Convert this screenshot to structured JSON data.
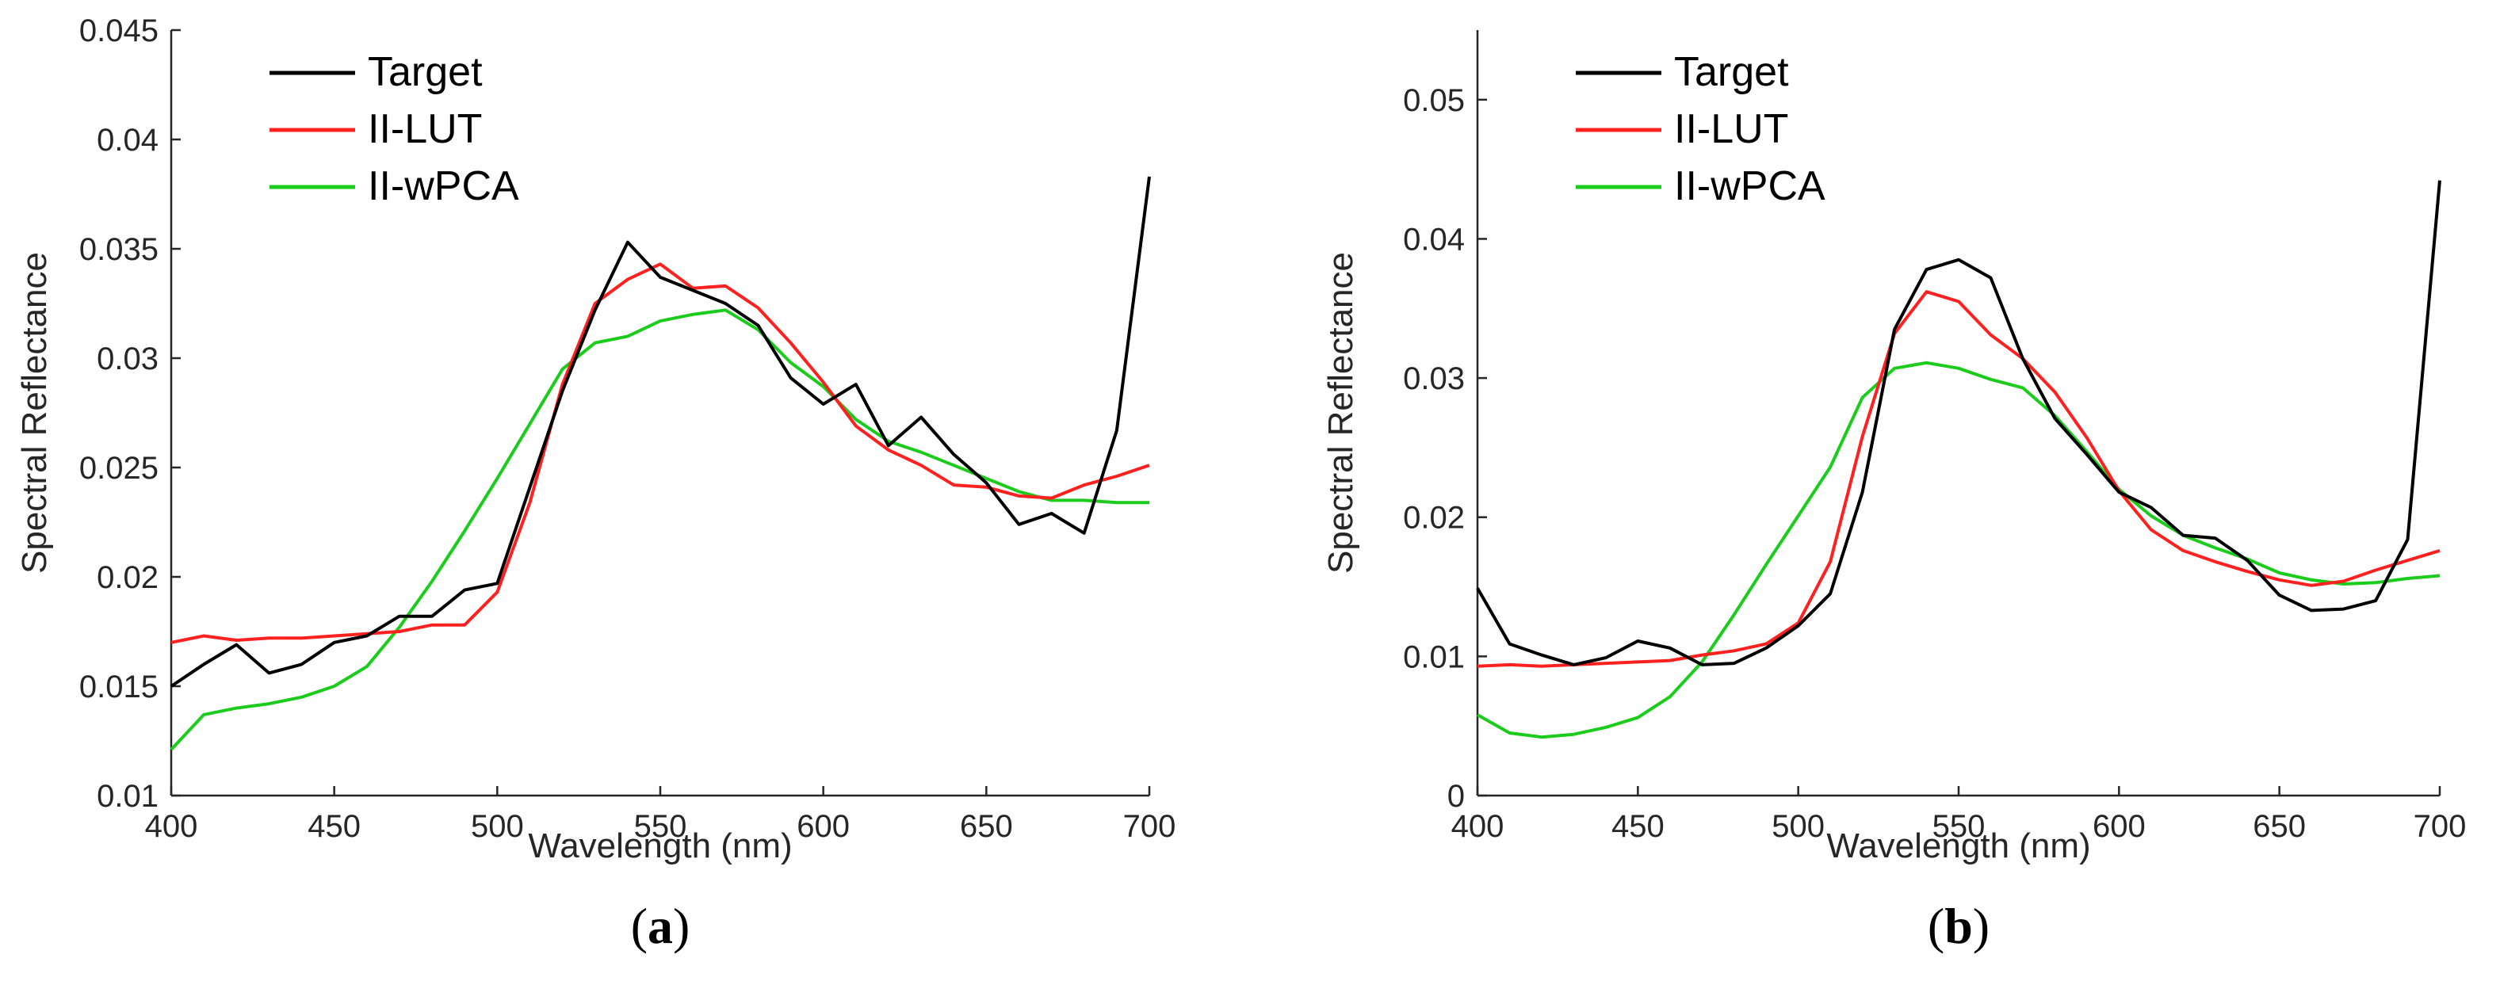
{
  "chart_data": [
    {
      "type": "line",
      "panel_label": "(a)",
      "panel_letter": "a",
      "xlabel": "Wavelength (nm)",
      "ylabel": "Spectral Reflectance",
      "xlim": [
        400,
        700
      ],
      "ylim": [
        0.01,
        0.045
      ],
      "x_ticks": [
        400,
        450,
        500,
        550,
        600,
        650,
        700
      ],
      "x_tick_labels": [
        "400",
        "450",
        "500",
        "550",
        "600",
        "650",
        "700"
      ],
      "y_ticks": [
        0.01,
        0.015,
        0.02,
        0.025,
        0.03,
        0.035,
        0.04,
        0.045
      ],
      "y_tick_labels": [
        "0.01",
        "0.015",
        "0.02",
        "0.025",
        "0.03",
        "0.035",
        "0.04",
        "0.045"
      ],
      "legend_position": "top-left",
      "x": [
        400,
        410,
        420,
        430,
        440,
        450,
        460,
        470,
        480,
        490,
        500,
        510,
        520,
        530,
        540,
        550,
        560,
        570,
        580,
        590,
        600,
        610,
        620,
        630,
        640,
        650,
        660,
        670,
        680,
        690,
        700
      ],
      "series": [
        {
          "name": "Target",
          "color": "#000000",
          "values": [
            0.015,
            0.016,
            0.0169,
            0.0156,
            0.016,
            0.017,
            0.0173,
            0.0182,
            0.0182,
            0.0194,
            0.0197,
            0.0241,
            0.0285,
            0.0322,
            0.0353,
            0.0337,
            0.0331,
            0.0325,
            0.0315,
            0.0291,
            0.0279,
            0.0288,
            0.026,
            0.0273,
            0.0256,
            0.0243,
            0.0224,
            0.0229,
            0.022,
            0.0267,
            0.0383
          ]
        },
        {
          "name": "II-LUT",
          "color": "#ff2020",
          "values": [
            0.017,
            0.0173,
            0.0171,
            0.0172,
            0.0172,
            0.0173,
            0.0174,
            0.0175,
            0.0178,
            0.0178,
            0.0193,
            0.0234,
            0.0288,
            0.0325,
            0.0336,
            0.0343,
            0.0332,
            0.0333,
            0.0323,
            0.0307,
            0.0289,
            0.0269,
            0.0258,
            0.0251,
            0.0242,
            0.0241,
            0.0237,
            0.0236,
            0.0242,
            0.0246,
            0.0251
          ]
        },
        {
          "name": "II-wPCA",
          "color": "#1ccc1c",
          "values": [
            0.0121,
            0.0137,
            0.014,
            0.0142,
            0.0145,
            0.015,
            0.0159,
            0.0177,
            0.0198,
            0.0221,
            0.0245,
            0.027,
            0.0295,
            0.0307,
            0.031,
            0.0317,
            0.032,
            0.0322,
            0.0313,
            0.0298,
            0.0287,
            0.0272,
            0.0262,
            0.0257,
            0.0251,
            0.0245,
            0.0239,
            0.0235,
            0.0235,
            0.0234,
            0.0234
          ]
        }
      ]
    },
    {
      "type": "line",
      "panel_label": "(b)",
      "panel_letter": "b",
      "xlabel": "Wavelength (nm)",
      "ylabel": "Spectral Reflectance",
      "xlim": [
        400,
        700
      ],
      "ylim": [
        0,
        0.055
      ],
      "x_ticks": [
        400,
        450,
        500,
        550,
        600,
        650,
        700
      ],
      "x_tick_labels": [
        "400",
        "450",
        "500",
        "550",
        "600",
        "650",
        "700"
      ],
      "y_ticks": [
        0,
        0.01,
        0.02,
        0.03,
        0.04,
        0.05
      ],
      "y_tick_labels": [
        "0",
        "0.01",
        "0.02",
        "0.03",
        "0.04",
        "0.05"
      ],
      "legend_position": "top-left",
      "x": [
        400,
        410,
        420,
        430,
        440,
        450,
        460,
        470,
        480,
        490,
        500,
        510,
        520,
        530,
        540,
        550,
        560,
        570,
        580,
        590,
        600,
        610,
        620,
        630,
        640,
        650,
        660,
        670,
        680,
        690,
        700
      ],
      "series": [
        {
          "name": "Target",
          "color": "#000000",
          "values": [
            0.0149,
            0.0109,
            0.0101,
            0.0094,
            0.0099,
            0.0111,
            0.0106,
            0.0094,
            0.0095,
            0.0106,
            0.0122,
            0.0145,
            0.0218,
            0.0335,
            0.0378,
            0.0385,
            0.0372,
            0.0314,
            0.0271,
            0.0245,
            0.0218,
            0.0207,
            0.0187,
            0.0185,
            0.0169,
            0.0144,
            0.0133,
            0.0134,
            0.014,
            0.0184,
            0.0442
          ]
        },
        {
          "name": "II-LUT",
          "color": "#ff2020",
          "values": [
            0.0093,
            0.0094,
            0.0093,
            0.0094,
            0.0095,
            0.0096,
            0.0097,
            0.0101,
            0.0104,
            0.0109,
            0.0124,
            0.0168,
            0.0258,
            0.0332,
            0.0362,
            0.0355,
            0.0331,
            0.0314,
            0.029,
            0.0257,
            0.0219,
            0.0191,
            0.0176,
            0.0168,
            0.0161,
            0.0155,
            0.0151,
            0.0154,
            0.0162,
            0.0169,
            0.0176
          ]
        },
        {
          "name": "II-wPCA",
          "color": "#1ccc1c",
          "values": [
            0.0058,
            0.0045,
            0.0042,
            0.0044,
            0.0049,
            0.0056,
            0.0071,
            0.0096,
            0.013,
            0.0166,
            0.0201,
            0.0236,
            0.0286,
            0.0307,
            0.0311,
            0.0307,
            0.0299,
            0.0293,
            0.0273,
            0.0247,
            0.022,
            0.0201,
            0.0187,
            0.0178,
            0.017,
            0.016,
            0.0155,
            0.0152,
            0.0153,
            0.0156,
            0.0158
          ]
        }
      ]
    }
  ]
}
